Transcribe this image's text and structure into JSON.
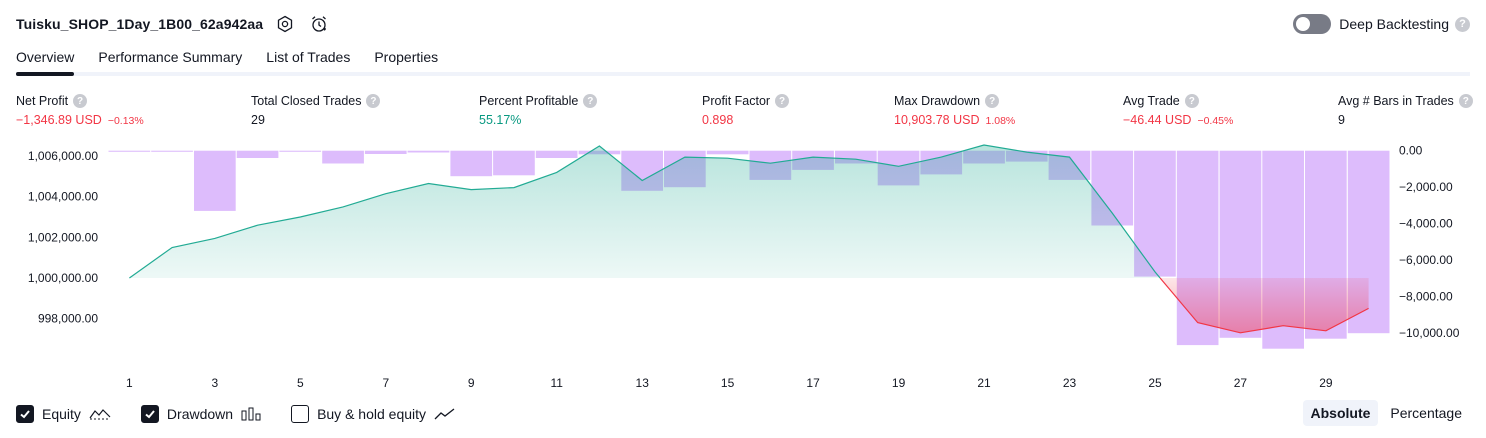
{
  "header": {
    "strategy_name": "Tuisku_SHOP_1Day_1B00_62a942aa",
    "deep_backtesting_label": "Deep Backtesting",
    "help_glyph": "?"
  },
  "tabs": [
    "Overview",
    "Performance Summary",
    "List of Trades",
    "Properties"
  ],
  "metrics": [
    {
      "label": "Net Profit",
      "value": "−1,346.89 USD",
      "pct": "−0.13%",
      "tone": "neg"
    },
    {
      "label": "Total Closed Trades",
      "value": "29",
      "pct": "",
      "tone": "neutral"
    },
    {
      "label": "Percent Profitable",
      "value": "55.17%",
      "pct": "",
      "tone": "pos"
    },
    {
      "label": "Profit Factor",
      "value": "0.898",
      "pct": "",
      "tone": "neg"
    },
    {
      "label": "Max Drawdown",
      "value": "10,903.78 USD",
      "pct": "1.08%",
      "tone": "neg"
    },
    {
      "label": "Avg Trade",
      "value": "−46.44 USD",
      "pct": "−0.45%",
      "tone": "neg"
    },
    {
      "label": "Avg # Bars in Trades",
      "value": "9",
      "pct": "",
      "tone": "neutral"
    }
  ],
  "legend": {
    "equity_label": "Equity",
    "drawdown_label": "Drawdown",
    "buyhold_label": "Buy & hold equity"
  },
  "mode": {
    "absolute_label": "Absolute",
    "percentage_label": "Percentage"
  },
  "colors": {
    "equity_line": "#22ab94",
    "equity_fill": "#22ab94",
    "loss_line": "#f23645",
    "loss_fill": "#f7a9b6",
    "drawdown_bar": "#d1a6fb",
    "text": "#131722",
    "grid_axis": "#787b86"
  },
  "chart_data": {
    "type": "area",
    "x": [
      1,
      2,
      3,
      4,
      5,
      6,
      7,
      8,
      9,
      10,
      11,
      12,
      13,
      14,
      15,
      16,
      17,
      18,
      19,
      20,
      21,
      22,
      23,
      24,
      25,
      26,
      27,
      28,
      29,
      30
    ],
    "x_ticks": [
      "1",
      "3",
      "5",
      "7",
      "9",
      "11",
      "13",
      "15",
      "17",
      "19",
      "21",
      "23",
      "25",
      "27",
      "29"
    ],
    "y_left_ticks": [
      "1,006,000.00",
      "1,004,000.00",
      "1,002,000.00",
      "1,000,000.00",
      "998,000.00"
    ],
    "y_right_ticks": [
      "0.00",
      "−2,000.00",
      "−4,000.00",
      "−6,000.00",
      "−8,000.00",
      "−10,000.00"
    ],
    "ylim_left": [
      996650,
      1006400
    ],
    "ylim_right": [
      -10700,
      150
    ],
    "baseline": 1000000,
    "series": [
      {
        "name": "Equity",
        "axis": "left",
        "values": [
          1000000,
          1001500,
          1001950,
          1002600,
          1003000,
          1003500,
          1004150,
          1004650,
          1004350,
          1004450,
          1005200,
          1006500,
          1004800,
          1005950,
          1005900,
          1005650,
          1005950,
          1005850,
          1005500,
          1005950,
          1006550,
          1006200,
          1005950,
          1003200,
          1000300,
          997800,
          997300,
          997650,
          997400,
          998500
        ]
      },
      {
        "name": "Drawdown",
        "axis": "right",
        "type": "bar",
        "values": [
          -60,
          -60,
          -3300,
          -400,
          -60,
          -700,
          -180,
          -100,
          -1400,
          -1350,
          -400,
          -200,
          -2200,
          -2000,
          -200,
          -1600,
          -1050,
          -700,
          -1900,
          -1300,
          -700,
          -600,
          -1600,
          -4100,
          -6900,
          -10650,
          -10250,
          -10850,
          -10300,
          -10000
        ]
      }
    ],
    "legend": "bottom-left",
    "grid": false
  }
}
